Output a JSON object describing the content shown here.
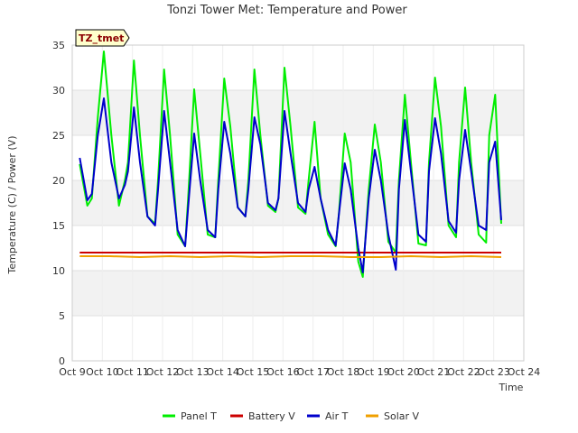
{
  "chart_data": {
    "type": "line",
    "title": "Tonzi Tower Met: Temperature and Power",
    "site_badge": "TZ_tmet",
    "xlabel": "Time",
    "ylabel": "Temperature (C) / Power (V)",
    "ylim": [
      0,
      35
    ],
    "yticks": [
      0,
      5,
      10,
      15,
      20,
      25,
      30,
      35
    ],
    "xlim": [
      9,
      24
    ],
    "x_ticks": [
      9,
      10,
      11,
      12,
      13,
      14,
      15,
      16,
      17,
      18,
      19,
      20,
      21,
      22,
      23,
      24
    ],
    "x_tick_labels": [
      "Oct 9",
      "Oct 10",
      "Oct 11",
      "Oct 12",
      "Oct 13",
      "Oct 14",
      "Oct 15",
      "Oct 16",
      "Oct 17",
      "Oct 18",
      "Oct 19",
      "Oct 20",
      "Oct 21",
      "Oct 22",
      "Oct 23",
      "Oct 24"
    ],
    "series": [
      {
        "name": "Panel T",
        "color": "#00ee00",
        "x": [
          9.25,
          9.5,
          9.65,
          9.85,
          10.05,
          10.3,
          10.55,
          10.75,
          10.85,
          11.05,
          11.25,
          11.5,
          11.75,
          11.85,
          12.05,
          12.25,
          12.5,
          12.75,
          12.85,
          13.05,
          13.25,
          13.5,
          13.75,
          13.85,
          14.05,
          14.25,
          14.5,
          14.75,
          14.85,
          15.05,
          15.25,
          15.5,
          15.75,
          15.85,
          16.05,
          16.25,
          16.5,
          16.75,
          16.85,
          17.05,
          17.25,
          17.5,
          17.75,
          17.85,
          18.05,
          18.25,
          18.5,
          18.65,
          18.85,
          19.05,
          19.25,
          19.5,
          19.75,
          19.85,
          20.05,
          20.25,
          20.5,
          20.75,
          20.85,
          21.05,
          21.25,
          21.5,
          21.75,
          21.85,
          22.05,
          22.25,
          22.5,
          22.75,
          22.85,
          23.05,
          23.25
        ],
        "values": [
          21.8,
          17.2,
          18,
          27,
          34.3,
          25,
          17.2,
          20,
          22,
          33.3,
          25,
          16,
          15.2,
          20,
          32.3,
          25,
          14,
          12.7,
          18,
          30.1,
          23,
          14,
          13.7,
          20,
          31.3,
          26,
          17,
          16,
          20,
          32.3,
          25,
          17.2,
          16.5,
          18,
          32.5,
          26,
          17,
          16.3,
          20,
          26.5,
          18,
          14,
          12.7,
          16,
          25.2,
          22,
          11,
          9.3,
          19,
          26.2,
          22,
          13.2,
          12,
          20,
          29.5,
          22,
          13,
          12.8,
          22,
          31.4,
          26,
          15,
          13.7,
          22,
          30.3,
          22,
          14,
          13.1,
          25,
          29.5,
          15.2
        ]
      },
      {
        "name": "Battery V",
        "color": "#cc0000",
        "x": [
          9.25,
          23.25
        ],
        "values": [
          12,
          12
        ]
      },
      {
        "name": "Air T",
        "color": "#0000cc",
        "x": [
          9.25,
          9.5,
          9.65,
          9.85,
          10.05,
          10.3,
          10.55,
          10.75,
          10.85,
          11.05,
          11.25,
          11.5,
          11.75,
          11.85,
          12.05,
          12.25,
          12.5,
          12.75,
          12.85,
          13.05,
          13.25,
          13.5,
          13.75,
          13.85,
          14.05,
          14.25,
          14.5,
          14.75,
          14.85,
          15.05,
          15.25,
          15.5,
          15.75,
          15.85,
          16.05,
          16.25,
          16.5,
          16.75,
          16.85,
          17.05,
          17.25,
          17.5,
          17.75,
          17.85,
          18.05,
          18.25,
          18.5,
          18.65,
          18.85,
          19.05,
          19.25,
          19.5,
          19.75,
          19.85,
          20.05,
          20.25,
          20.5,
          20.75,
          20.85,
          21.05,
          21.25,
          21.5,
          21.75,
          21.85,
          22.05,
          22.25,
          22.5,
          22.75,
          22.85,
          23.05,
          23.25
        ],
        "values": [
          22.5,
          17.8,
          18.5,
          25,
          29.1,
          22,
          18,
          19.5,
          21,
          28.1,
          22,
          16,
          15,
          19,
          27.7,
          22,
          14.5,
          12.7,
          17,
          25.2,
          20,
          14.5,
          13.7,
          19,
          26.5,
          23,
          17,
          16,
          19,
          27,
          24,
          17.5,
          16.7,
          18,
          27.7,
          23,
          17.5,
          16.5,
          19,
          21.5,
          18,
          14.5,
          12.8,
          16,
          21.9,
          19,
          12.5,
          9.8,
          18,
          23.4,
          20,
          14,
          10.1,
          19,
          26.7,
          21,
          14,
          13.2,
          21,
          26.9,
          23,
          15.5,
          14.2,
          20,
          25.6,
          21,
          15,
          14.5,
          22,
          24.3,
          15.6
        ]
      },
      {
        "name": "Solar V",
        "color": "#f0a000",
        "x": [
          9.25,
          10.25,
          11.25,
          12.25,
          13.25,
          14.25,
          15.25,
          16.25,
          17.25,
          18.25,
          19.25,
          20.25,
          21.25,
          22.25,
          23.25
        ],
        "values": [
          11.6,
          11.6,
          11.5,
          11.6,
          11.5,
          11.6,
          11.5,
          11.6,
          11.6,
          11.5,
          11.5,
          11.6,
          11.5,
          11.6,
          11.5
        ]
      }
    ]
  }
}
